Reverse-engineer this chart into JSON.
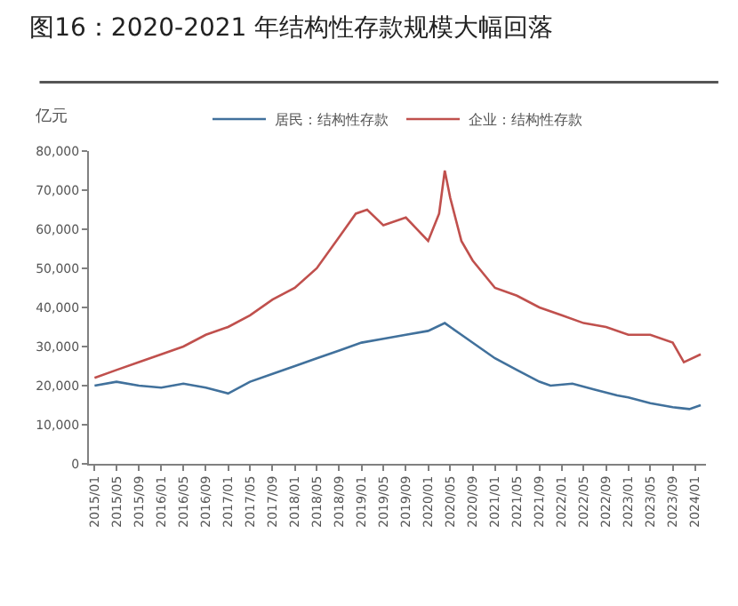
{
  "chart_data": {
    "type": "line",
    "title": "图16：2020-2021 年结构性存款规模大幅回落",
    "ylabel": "亿元",
    "series": [
      {
        "name": "居民：结构性存款",
        "color": "#41719c",
        "x": [
          "2015-01",
          "2015-05",
          "2015-09",
          "2016-01",
          "2016-05",
          "2016-09",
          "2017-01",
          "2017-05",
          "2017-09",
          "2018-01",
          "2018-05",
          "2018-09",
          "2019-01",
          "2019-05",
          "2019-09",
          "2020-01",
          "2020-04",
          "2020-07",
          "2020-10",
          "2021-01",
          "2021-05",
          "2021-09",
          "2021-11",
          "2022-03",
          "2022-07",
          "2022-11",
          "2023-01",
          "2023-05",
          "2023-09",
          "2023-12",
          "2024-02"
        ],
        "values": [
          20000,
          21000,
          20000,
          19500,
          20500,
          19500,
          18000,
          21000,
          23000,
          25000,
          27000,
          29000,
          31000,
          32000,
          33000,
          34000,
          36000,
          33000,
          30000,
          27000,
          24000,
          21000,
          20000,
          20500,
          19000,
          17500,
          17000,
          15500,
          14500,
          14000,
          15000
        ]
      },
      {
        "name": "企业：结构性存款",
        "color": "#c0504d",
        "x": [
          "2015-01",
          "2015-05",
          "2015-09",
          "2016-01",
          "2016-05",
          "2016-09",
          "2017-01",
          "2017-05",
          "2017-09",
          "2018-01",
          "2018-05",
          "2018-09",
          "2018-12",
          "2019-02",
          "2019-05",
          "2019-09",
          "2020-01",
          "2020-03",
          "2020-04",
          "2020-05",
          "2020-07",
          "2020-09",
          "2021-01",
          "2021-05",
          "2021-09",
          "2022-01",
          "2022-05",
          "2022-09",
          "2023-01",
          "2023-05",
          "2023-09",
          "2023-11",
          "2024-02"
        ],
        "values": [
          22000,
          24000,
          26000,
          28000,
          30000,
          33000,
          35000,
          38000,
          42000,
          45000,
          50000,
          58000,
          64000,
          65000,
          61000,
          63000,
          57000,
          64000,
          75000,
          68000,
          57000,
          52000,
          45000,
          43000,
          40000,
          38000,
          36000,
          35000,
          33000,
          33000,
          31000,
          26000,
          28000
        ]
      }
    ],
    "xlim": [
      "2014-12",
      "2024-03"
    ],
    "xticks": [
      {
        "value": "2015-01",
        "label": "2015/01"
      },
      {
        "value": "2015-05",
        "label": "2015/05"
      },
      {
        "value": "2015-09",
        "label": "2015/09"
      },
      {
        "value": "2016-01",
        "label": "2016/01"
      },
      {
        "value": "2016-05",
        "label": "2016/05"
      },
      {
        "value": "2016-09",
        "label": "2016/09"
      },
      {
        "value": "2017-01",
        "label": "2017/01"
      },
      {
        "value": "2017-05",
        "label": "2017/05"
      },
      {
        "value": "2017-09",
        "label": "2017/09"
      },
      {
        "value": "2018-01",
        "label": "2018/01"
      },
      {
        "value": "2018-05",
        "label": "2018/05"
      },
      {
        "value": "2018-09",
        "label": "2018/09"
      },
      {
        "value": "2019-01",
        "label": "2019/01"
      },
      {
        "value": "2019-05",
        "label": "2019/05"
      },
      {
        "value": "2019-09",
        "label": "2019/09"
      },
      {
        "value": "2020-01",
        "label": "2020/01"
      },
      {
        "value": "2020-05",
        "label": "2020/05"
      },
      {
        "value": "2020-09",
        "label": "2020/09"
      },
      {
        "value": "2021-01",
        "label": "2021/01"
      },
      {
        "value": "2021-05",
        "label": "2021/05"
      },
      {
        "value": "2021-09",
        "label": "2021/09"
      },
      {
        "value": "2022-01",
        "label": "2022/01"
      },
      {
        "value": "2022-05",
        "label": "2022/05"
      },
      {
        "value": "2022-09",
        "label": "2022/09"
      },
      {
        "value": "2023-01",
        "label": "2023/01"
      },
      {
        "value": "2023-05",
        "label": "2023/05"
      },
      {
        "value": "2023-09",
        "label": "2023/09"
      },
      {
        "value": "2024-01",
        "label": "2024/01"
      }
    ],
    "ylim": [
      0,
      80000
    ],
    "yticks": [
      {
        "value": 0,
        "label": "0"
      },
      {
        "value": 10000,
        "label": "10,000"
      },
      {
        "value": 20000,
        "label": "20,000"
      },
      {
        "value": 30000,
        "label": "30,000"
      },
      {
        "value": 40000,
        "label": "40,000"
      },
      {
        "value": 50000,
        "label": "50,000"
      },
      {
        "value": 60000,
        "label": "60,000"
      },
      {
        "value": 70000,
        "label": "70,000"
      },
      {
        "value": 80000,
        "label": "80,000"
      }
    ],
    "legend": "top",
    "marker": "none",
    "line_style": "solid"
  }
}
